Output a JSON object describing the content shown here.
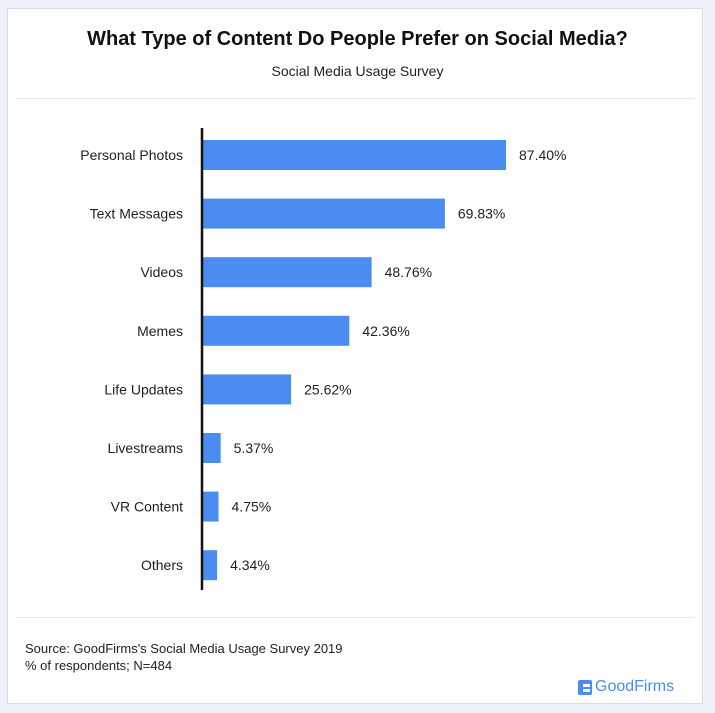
{
  "chart_data": {
    "type": "bar",
    "orientation": "horizontal",
    "title": "What Type of Content Do People Prefer on Social Media?",
    "subtitle": "Social Media Usage Survey",
    "categories": [
      "Personal Photos",
      "Text Messages",
      "Videos",
      "Memes",
      "Life Updates",
      "Livestreams",
      "VR Content",
      "Others"
    ],
    "values": [
      87.4,
      69.83,
      48.76,
      42.36,
      25.62,
      5.37,
      4.75,
      4.34
    ],
    "labels": [
      "87.40%",
      "69.83%",
      "48.76%",
      "42.36%",
      "25.62%",
      "5.37%",
      "4.75%",
      "4.34%"
    ],
    "xlim": [
      0,
      100
    ],
    "grid": false,
    "bar_color": "#4a8cf0"
  },
  "footer": {
    "source": "Source: GoodFirms's Social Media Usage Survey 2019",
    "note": "% of respondents; N=484",
    "logo": "GoodFirms"
  }
}
